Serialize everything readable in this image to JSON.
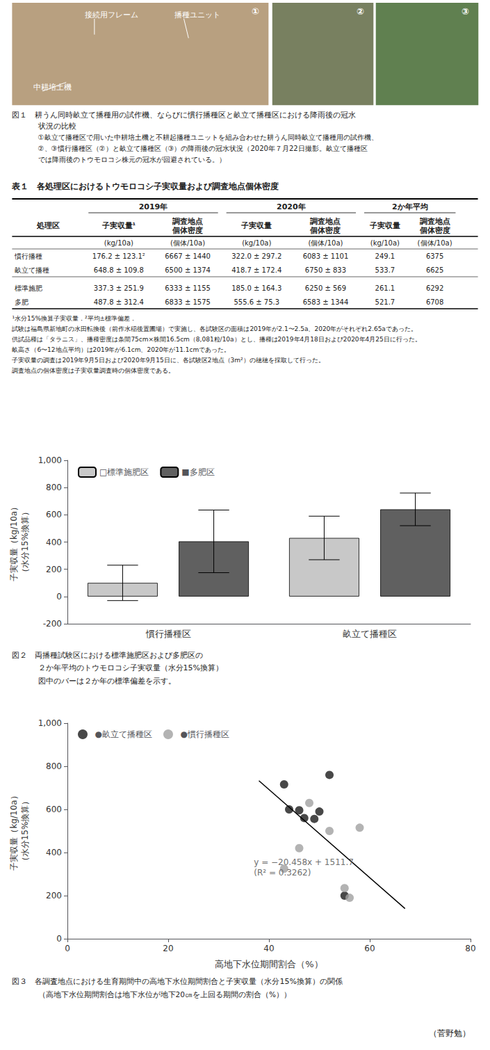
{
  "chart_data": [
    {
      "type": "photo",
      "title": [
        "図１　耕うん同時畝立て播種用の試作機、ならびに慣行播種区と畝立て播種区における降雨後の冠水",
        "状況の比較"
      ],
      "subtitle": [
        "①畝立て播種区で用いた中耕培土機と不耕起播種ユニットを組み合わせた耕うん同時畝立て播種用の試作機、",
        "②、③慣行播種区（②）と畝立て播種区（③）の降雨後の冠水状況（2020年７月22日撮影。畝立て播種区",
        "では降雨後のトウモロコシ株元の冠水が回避されている。）"
      ],
      "photos": [
        {
          "label": "①",
          "color": "#b8a080"
        },
        {
          "label": "②",
          "color": "#788060"
        },
        {
          "label": "③",
          "color": "#608050"
        }
      ],
      "annotations": [
        "接続用フレーム",
        "播種ユニット",
        "中耕培土機"
      ]
    },
    {
      "type": "table",
      "title": "表１　各処理区におけるトウモロコシ子実収量および調査地点個体密度",
      "column_groups": [
        "2019年",
        "2020年",
        "2か年平均"
      ],
      "columns": [
        "処理区",
        "子実収量¹",
        "調査地点\n個体密度",
        "子実収量",
        "調査地点\n個体密度",
        "子実収量",
        "調査地点\n個体密度"
      ],
      "units": [
        "(kg/10a)",
        "(個体/10a)",
        "(kg/10a)",
        "(個体/10a)",
        "(kg/10a)",
        "(個体/10a)"
      ],
      "row_groups": [
        [
          [
            "慣行播種",
            "176.2 ± 123.1²",
            "6667 ± 1440",
            "322.0 ± 297.2",
            "6083 ± 1101",
            "249.1",
            "6375"
          ],
          [
            "畝立て播種",
            "648.8 ± 109.8",
            "6500 ± 1374",
            "418.7 ± 172.4",
            "6750 ± 833",
            "533.7",
            "6625"
          ]
        ],
        [
          [
            "標準施肥",
            "337.3 ± 251.9",
            "6333 ± 1155",
            "185.0 ± 164.3",
            "6250 ± 569",
            "261.1",
            "6292"
          ],
          [
            "多肥",
            "487.8 ± 312.4",
            "6833 ± 1575",
            "555.6 ± 75.3",
            "6583 ± 1344",
            "521.7",
            "6708"
          ]
        ]
      ],
      "notes": [
        "¹水分15%換算子実収量．²平均±標準偏差．",
        "試験は福島県新地町の水田転換後（前作水稲後置圃場）で実施し、各試験区の面積は2019年が2.1〜2.5a、2020年がそれぞれ2.65aであった。",
        "供試品種は「タラニス」、播種密度は条間75cm×株間16.5cm（8,081粒/10a）とし、播種は2019年4月18日および2020年4月25日に行った。",
        "畝高さ（6〜12地点平均）は2019年が6.1cm、2020年が11.1cmであった。",
        "子実収量の調査は2019年9月5日および2020年9月15日に、各試験区2地点（3m²）の穂穂を採取して行った。",
        "調査地点の個体密度は子実収量調査時の個体密度である。"
      ]
    },
    {
      "type": "bar",
      "title": [
        "図２　両播種試験区における標準施肥区および多肥区の",
        "２か年平均のトウモロコシ子実収量（水分15%換算）"
      ],
      "subtitle": "図中のバーは２か年の標準偏差を示す。",
      "categories": [
        "慣行播種区",
        "畝立て播種区"
      ],
      "series": [
        {
          "name": "□標準施肥区",
          "color": "#c8c8c8",
          "values": [
            100.0,
            430.0
          ],
          "errors": [
            130.0,
            160.0
          ]
        },
        {
          "name": "■多肥区",
          "color": "#606060",
          "values": [
            405.0,
            640.0
          ],
          "errors": [
            230.0,
            120.0
          ]
        }
      ],
      "ylabel": [
        "子実収量（kg/10a）",
        "（水分15%換算）"
      ],
      "ylim": [
        -200,
        1000
      ],
      "yticks": [
        -200,
        0,
        200,
        400,
        600,
        800,
        1000
      ],
      "grid": false,
      "legend": "upper left"
    },
    {
      "type": "scatter",
      "title": "図３　各調査地点における生育期間中の高地下水位期間割合と子実収量（水分15%換算）の関係",
      "subtitle": "（高地下水位期間割合は地下水位が地下20㎝を上回る期間の割合（%））",
      "xlabel": "高地下水位期間割合（%）",
      "ylabel": [
        "子実収量（kg/10a）",
        "（水分15%換算）"
      ],
      "xlim": [
        0,
        80
      ],
      "xticks": [
        0,
        20,
        40,
        60,
        80
      ],
      "ylim": [
        0,
        1000
      ],
      "yticks": [
        0,
        200,
        400,
        600,
        800,
        1000
      ],
      "grid": false,
      "legend": "upper left",
      "series": [
        {
          "name": "●畝立て播種区",
          "color": "#1a1a1a",
          "marker": "circle",
          "x": [
            43,
            44,
            46,
            47,
            49,
            50,
            52,
            55
          ],
          "values": [
            716,
            600,
            596,
            560,
            556,
            590,
            760,
            200
          ]
        },
        {
          "name": "●慣行播種区",
          "color": "#a0a0a0",
          "marker": "circle",
          "x": [
            43,
            46,
            48,
            52,
            55,
            56,
            58
          ],
          "values": [
            325,
            420,
            630,
            500,
            235,
            190,
            515
          ]
        }
      ],
      "regression": {
        "color": "#000000",
        "x": [
          38,
          67
        ],
        "values": [
          733.0,
          140.0
        ]
      },
      "annotations": [
        {
          "text": [
            "y = −20.458x + 1511.7",
            "(R² = 0.3262)"
          ],
          "x": 37,
          "y": 380,
          "color": "#707070"
        }
      ]
    },
    {
      "type": "text",
      "annotations": [
        "（菅野勉）"
      ]
    }
  ]
}
